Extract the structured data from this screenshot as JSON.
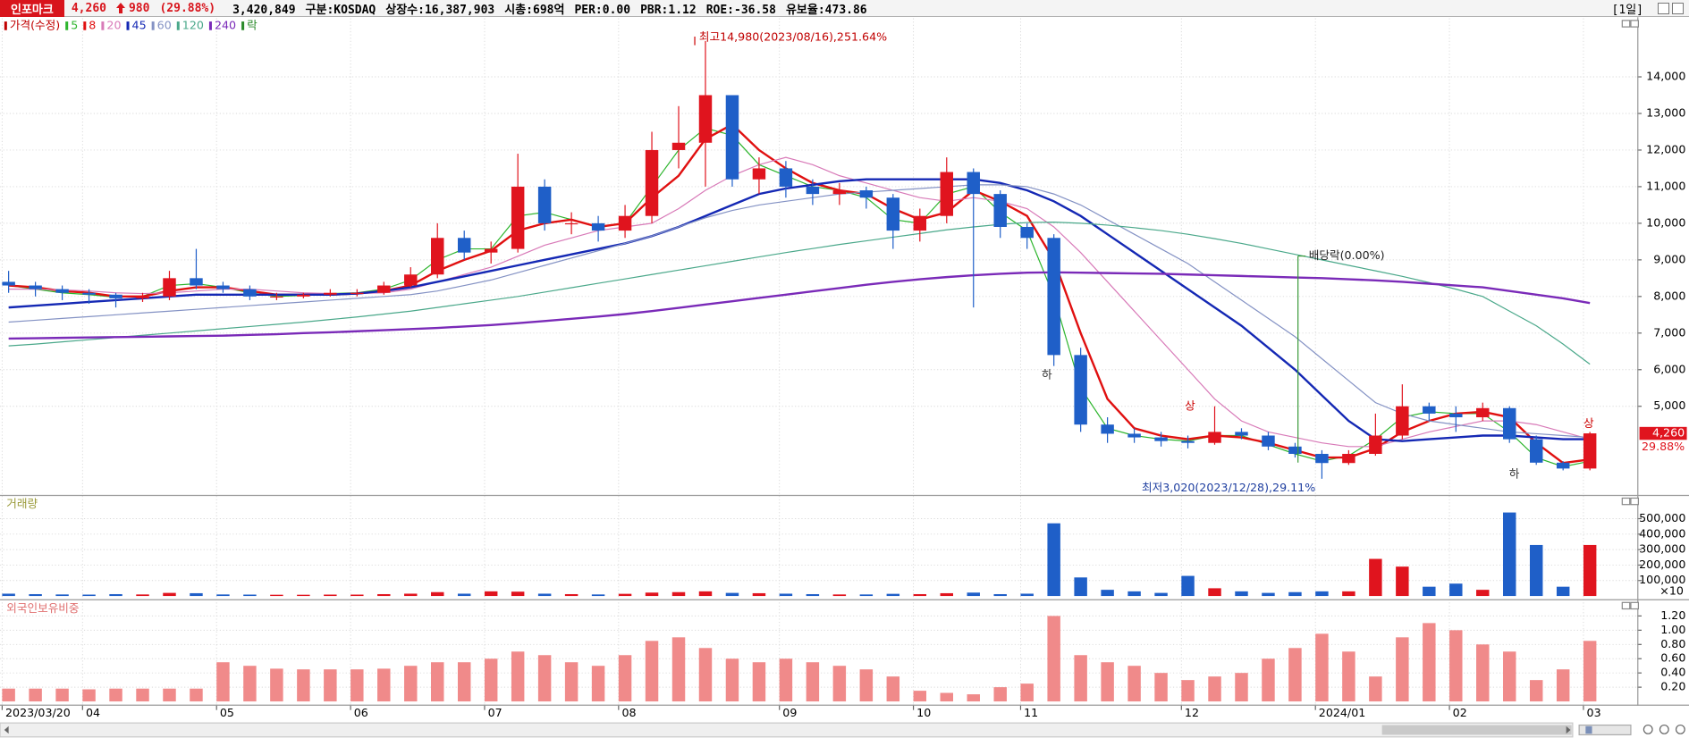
{
  "header": {
    "name": "인포마크",
    "price": "4,260",
    "change": "980",
    "change_pct": "(29.88%)",
    "fields": [
      "3,420,849",
      "구분:KOSDAQ",
      "상장수:16,387,903",
      "시총:698억",
      "PER:0.00",
      "PBR:1.12",
      "ROE:-36.58",
      "유보율:473.86"
    ],
    "period": "[1일]"
  },
  "chart_data": [
    {
      "type": "candlestick",
      "name": "가격(수정)",
      "categories": [
        "2023/03/20",
        null,
        null,
        "04",
        null,
        null,
        null,
        null,
        "05",
        null,
        null,
        null,
        null,
        "06",
        null,
        null,
        null,
        null,
        "07",
        null,
        null,
        null,
        null,
        "08",
        null,
        null,
        null,
        null,
        null,
        "09",
        null,
        null,
        null,
        null,
        "10",
        null,
        null,
        null,
        "11",
        null,
        null,
        null,
        null,
        null,
        "12",
        null,
        null,
        null,
        null,
        "2024/01",
        null,
        null,
        null,
        null,
        "02",
        null,
        null,
        null,
        null,
        "03"
      ],
      "open": [
        8400,
        8300,
        8200,
        8100,
        8050,
        7950,
        8000,
        8500,
        8300,
        8200,
        8000,
        8000,
        8050,
        8100,
        8100,
        8300,
        8600,
        9600,
        9200,
        9300,
        11000,
        10000,
        10000,
        9800,
        10200,
        12000,
        12200,
        13500,
        11200,
        11500,
        11000,
        10800,
        10900,
        10700,
        9800,
        10200,
        11400,
        10800,
        9900,
        9600,
        6400,
        4500,
        4250,
        4150,
        4050,
        4000,
        4300,
        4200,
        3900,
        3700,
        3450,
        3700,
        4200,
        5000,
        4800,
        4700,
        4950,
        4100,
        3460,
        3300
      ],
      "high": [
        8700,
        8400,
        8300,
        8200,
        8100,
        8100,
        8700,
        9300,
        8400,
        8300,
        8100,
        8100,
        8200,
        8200,
        8400,
        8800,
        10000,
        9800,
        9500,
        11900,
        11200,
        10300,
        10200,
        10500,
        12500,
        13200,
        14980,
        13500,
        11800,
        11700,
        11200,
        11100,
        11000,
        10800,
        10400,
        11800,
        11500,
        10900,
        10000,
        9700,
        6600,
        4700,
        4400,
        4300,
        4200,
        5000,
        4400,
        4300,
        4000,
        3800,
        3800,
        4800,
        5600,
        5100,
        5000,
        5100,
        5000,
        4200,
        3500,
        4300
      ],
      "low": [
        8100,
        8000,
        7900,
        7800,
        7700,
        7850,
        7900,
        8200,
        8100,
        7900,
        7900,
        7950,
        8000,
        8000,
        8050,
        8250,
        8500,
        9000,
        8900,
        9200,
        9800,
        9700,
        9500,
        9600,
        10000,
        11500,
        11000,
        11000,
        10800,
        10700,
        10500,
        10500,
        10400,
        9300,
        9500,
        10000,
        7700,
        9600,
        9300,
        6100,
        4300,
        4000,
        4000,
        3900,
        3850,
        3950,
        4100,
        3800,
        3600,
        3020,
        3400,
        3650,
        4100,
        4600,
        4300,
        4600,
        4000,
        3400,
        3250,
        3250
      ],
      "close": [
        8300,
        8200,
        8100,
        8050,
        7950,
        8000,
        8500,
        8300,
        8200,
        8000,
        8000,
        8050,
        8100,
        8100,
        8300,
        8600,
        9600,
        9200,
        9300,
        11000,
        10000,
        10000,
        9800,
        10200,
        12000,
        12200,
        13500,
        11200,
        11500,
        11000,
        10800,
        10900,
        10700,
        9800,
        10200,
        11400,
        10800,
        9900,
        9600,
        6400,
        4500,
        4250,
        4150,
        4050,
        4000,
        4300,
        4200,
        3900,
        3700,
        3450,
        3700,
        4200,
        5000,
        4800,
        4700,
        4950,
        4100,
        3460,
        3300,
        4260
      ],
      "up_color": "#e0141e",
      "down_color": "#1f5fc8",
      "series": [
        {
          "name": "5",
          "color": "#2db52d",
          "values": [
            8300,
            8200,
            8100,
            8050,
            7980,
            8000,
            8300,
            8350,
            8250,
            8100,
            8000,
            8030,
            8080,
            8100,
            8200,
            8450,
            9000,
            9300,
            9300,
            10200,
            10300,
            10100,
            9900,
            10000,
            11000,
            12000,
            12600,
            12400,
            11600,
            11300,
            11000,
            10900,
            10700,
            10100,
            10000,
            10800,
            11000,
            10300,
            9800,
            8000,
            5500,
            4400,
            4200,
            4100,
            4050,
            4200,
            4200,
            3950,
            3700,
            3500,
            3650,
            4100,
            4700,
            4850,
            4800,
            4800,
            4300,
            3600,
            3350,
            3500
          ]
        },
        {
          "name": "8",
          "color": "#e01010",
          "values": [
            8300,
            8250,
            8150,
            8100,
            8000,
            8000,
            8150,
            8250,
            8250,
            8150,
            8050,
            8050,
            8050,
            8080,
            8150,
            8300,
            8700,
            9000,
            9250,
            9800,
            10000,
            10100,
            9900,
            10000,
            10700,
            11300,
            12300,
            12700,
            12000,
            11500,
            11100,
            10900,
            10800,
            10400,
            10100,
            10300,
            10900,
            10600,
            10200,
            9000,
            7000,
            5200,
            4400,
            4200,
            4100,
            4200,
            4150,
            4000,
            3800,
            3600,
            3600,
            3850,
            4300,
            4600,
            4800,
            4850,
            4700,
            4000,
            3450,
            3550
          ]
        },
        {
          "name": "20",
          "color": "#d87ab8",
          "values": [
            8200,
            8200,
            8180,
            8150,
            8100,
            8080,
            8100,
            8150,
            8200,
            8200,
            8150,
            8100,
            8080,
            8080,
            8100,
            8200,
            8400,
            8600,
            8800,
            9100,
            9400,
            9600,
            9800,
            9900,
            10000,
            10400,
            10900,
            11300,
            11600,
            11800,
            11600,
            11300,
            11100,
            10900,
            10700,
            10600,
            10700,
            10600,
            10400,
            9900,
            9200,
            8400,
            7600,
            6800,
            6000,
            5200,
            4600,
            4300,
            4150,
            4000,
            3900,
            3900,
            4100,
            4300,
            4450,
            4600,
            4600,
            4500,
            4300,
            4100
          ]
        },
        {
          "name": "45",
          "color": "#1428b4",
          "values": [
            7700,
            7750,
            7800,
            7850,
            7900,
            7950,
            8000,
            8050,
            8050,
            8050,
            8050,
            8050,
            8050,
            8080,
            8150,
            8250,
            8400,
            8550,
            8700,
            8850,
            9000,
            9150,
            9300,
            9450,
            9650,
            9900,
            10200,
            10500,
            10800,
            10950,
            11050,
            11150,
            11200,
            11200,
            11200,
            11200,
            11200,
            11100,
            10900,
            10600,
            10200,
            9700,
            9200,
            8700,
            8200,
            7700,
            7200,
            6600,
            6000,
            5300,
            4600,
            4100,
            4050,
            4100,
            4150,
            4200,
            4200,
            4150,
            4100,
            4100
          ]
        },
        {
          "name": "60",
          "color": "#8492c4",
          "values": [
            7300,
            7350,
            7400,
            7450,
            7500,
            7550,
            7600,
            7650,
            7700,
            7750,
            7800,
            7850,
            7900,
            7950,
            8000,
            8050,
            8150,
            8300,
            8450,
            8650,
            8850,
            9050,
            9250,
            9450,
            9650,
            9900,
            10150,
            10350,
            10500,
            10600,
            10700,
            10800,
            10850,
            10900,
            10950,
            11000,
            11050,
            11050,
            11000,
            10800,
            10500,
            10100,
            9700,
            9300,
            8900,
            8400,
            7900,
            7400,
            6900,
            6300,
            5700,
            5100,
            4800,
            4600,
            4500,
            4400,
            4300,
            4250,
            4200,
            4150
          ]
        },
        {
          "name": "120",
          "color": "#4aa88a",
          "values": [
            6650,
            6700,
            6760,
            6820,
            6880,
            6940,
            7000,
            7060,
            7120,
            7180,
            7240,
            7300,
            7370,
            7440,
            7520,
            7600,
            7700,
            7800,
            7900,
            8000,
            8120,
            8240,
            8360,
            8480,
            8600,
            8720,
            8840,
            8960,
            9080,
            9200,
            9310,
            9420,
            9520,
            9620,
            9720,
            9820,
            9900,
            9970,
            10020,
            10030,
            10000,
            9950,
            9880,
            9800,
            9700,
            9580,
            9450,
            9300,
            9150,
            9000,
            8850,
            8700,
            8550,
            8380,
            8200,
            8000,
            7600,
            7200,
            6700,
            6150
          ]
        },
        {
          "name": "240",
          "color": "#7a2ab8",
          "values": [
            6850,
            6860,
            6870,
            6880,
            6890,
            6900,
            6910,
            6920,
            6930,
            6950,
            6970,
            7000,
            7020,
            7050,
            7080,
            7110,
            7140,
            7180,
            7220,
            7270,
            7330,
            7390,
            7450,
            7520,
            7600,
            7690,
            7780,
            7870,
            7960,
            8050,
            8140,
            8230,
            8320,
            8400,
            8470,
            8530,
            8580,
            8620,
            8650,
            8660,
            8650,
            8640,
            8630,
            8620,
            8600,
            8580,
            8560,
            8540,
            8520,
            8500,
            8470,
            8440,
            8400,
            8350,
            8300,
            8250,
            8150,
            8050,
            7950,
            7820
          ]
        }
      ],
      "legend_extra": "락",
      "ylim": [
        2580,
        15600
      ],
      "yticks": [
        {
          "value": 5000,
          "label": "5,000"
        },
        {
          "value": 6000,
          "label": "6,000"
        },
        {
          "value": 7000,
          "label": "7,000"
        },
        {
          "value": 8000,
          "label": "8,000"
        },
        {
          "value": 9000,
          "label": "9,000"
        },
        {
          "value": 10000,
          "label": "10,000"
        },
        {
          "value": 11000,
          "label": "11,000"
        },
        {
          "value": 12000,
          "label": "12,000"
        },
        {
          "value": 13000,
          "label": "13,000"
        },
        {
          "value": 14000,
          "label": "14,000"
        }
      ],
      "grid": true,
      "last_price": "4,260",
      "last_change": "29.88%",
      "annotations": {
        "high": "최고14,980(2023/08/16),251.64%",
        "low": "최저3,020(2023/12/28),29.11%",
        "dividend": "배당락(0.00%)",
        "markers": [
          "하",
          "상",
          "하",
          "상"
        ]
      }
    },
    {
      "type": "bar",
      "title": "거래량",
      "unit_label": "×10",
      "values": [
        15000,
        12000,
        10000,
        9000,
        12000,
        10000,
        20000,
        18000,
        10000,
        9000,
        8000,
        8000,
        9000,
        9000,
        12000,
        15000,
        25000,
        15000,
        30000,
        28000,
        15000,
        12000,
        10000,
        14000,
        22000,
        25000,
        30000,
        20000,
        18000,
        15000,
        12000,
        10000,
        10000,
        14000,
        12000,
        18000,
        22000,
        12000,
        15000,
        470000,
        120000,
        40000,
        30000,
        20000,
        130000,
        50000,
        30000,
        20000,
        25000,
        30000,
        30000,
        240000,
        190000,
        60000,
        80000,
        40000,
        540000,
        330000,
        60000,
        330000
      ],
      "ylim": [
        0,
        640000
      ],
      "yticks": [
        {
          "value": 100000,
          "label": "100,000"
        },
        {
          "value": 200000,
          "label": "200,000"
        },
        {
          "value": 300000,
          "label": "300,000"
        },
        {
          "value": 400000,
          "label": "400,000"
        },
        {
          "value": 500000,
          "label": "500,000"
        }
      ]
    },
    {
      "type": "bar",
      "title": "외국인보유비중",
      "color": "#f08a8a",
      "values": [
        0.18,
        0.18,
        0.18,
        0.17,
        0.18,
        0.18,
        0.18,
        0.18,
        0.55,
        0.5,
        0.46,
        0.45,
        0.45,
        0.45,
        0.46,
        0.5,
        0.55,
        0.55,
        0.6,
        0.7,
        0.65,
        0.55,
        0.5,
        0.65,
        0.85,
        0.9,
        0.75,
        0.6,
        0.55,
        0.6,
        0.55,
        0.5,
        0.45,
        0.35,
        0.15,
        0.12,
        0.1,
        0.2,
        0.25,
        1.2,
        0.65,
        0.55,
        0.5,
        0.4,
        0.3,
        0.35,
        0.4,
        0.6,
        0.75,
        0.95,
        0.7,
        0.35,
        0.9,
        1.1,
        1.0,
        0.8,
        0.7,
        0.3,
        0.45,
        0.85
      ],
      "ylim": [
        0,
        1.42
      ],
      "yticks": [
        {
          "value": 0.2,
          "label": "0.20"
        },
        {
          "value": 0.4,
          "label": "0.40"
        },
        {
          "value": 0.6,
          "label": "0.60"
        },
        {
          "value": 0.8,
          "label": "0.80"
        },
        {
          "value": 1.0,
          "label": "1.00"
        },
        {
          "value": 1.2,
          "label": "1.20"
        }
      ]
    }
  ]
}
